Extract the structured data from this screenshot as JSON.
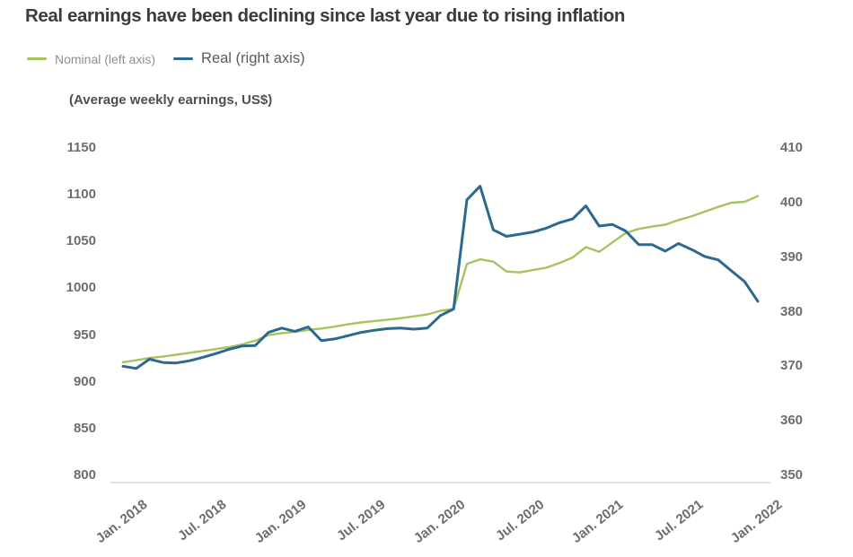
{
  "title": "Real earnings have been declining since last year due to rising inflation",
  "legend": {
    "items": [
      {
        "label": "Nominal (left axis)",
        "color": "#a5c45f"
      },
      {
        "label": "Real (right axis)",
        "color": "#2c688f"
      }
    ]
  },
  "chart_data": {
    "type": "line",
    "x_unit": "month",
    "x_start": "Jan 2018",
    "x_end": "Jan 2022",
    "x_tick_labels": [
      "Jan. 2018",
      "Jul. 2018",
      "Jan. 2019",
      "Jul. 2019",
      "Jan. 2020",
      "Jul. 2020",
      "Jan. 2021",
      "Jul. 2021",
      "Jan. 2022"
    ],
    "left_axis": {
      "label": "(Average weekly earnings, US$)",
      "ticks": [
        1150,
        1100,
        1050,
        1000,
        950,
        900,
        850,
        800
      ],
      "range": [
        800,
        1150
      ]
    },
    "right_axis": {
      "ticks": [
        410,
        400,
        390,
        380,
        370,
        360,
        350
      ],
      "range": [
        350,
        410
      ]
    },
    "series": [
      {
        "name": "Nominal (left axis)",
        "axis": "left",
        "color": "#a5c45f",
        "values": [
          921,
          923,
          925.5,
          927,
          929,
          931,
          933,
          935,
          937,
          940,
          944,
          950,
          952,
          953.5,
          955.5,
          957,
          959,
          961.5,
          963.5,
          965,
          966.5,
          968,
          970,
          972,
          976,
          978,
          1026,
          1031,
          1028.5,
          1018,
          1017,
          1019.5,
          1022,
          1027,
          1033,
          1044,
          1039,
          1049,
          1059,
          1063.5,
          1066,
          1068,
          1073,
          1077,
          1082,
          1087,
          1091.5,
          1092.5,
          1098.5
        ]
      },
      {
        "name": "Real (right axis)",
        "axis": "right",
        "color": "#2c688f",
        "values": [
          370,
          369.6,
          371.3,
          370.7,
          370.6,
          371,
          371.6,
          372.3,
          373.1,
          373.7,
          373.8,
          376.2,
          377,
          376.4,
          377.2,
          374.7,
          375,
          375.6,
          376.2,
          376.6,
          376.9,
          377,
          376.8,
          377,
          379.3,
          380.5,
          400.5,
          403,
          395,
          393.8,
          394.2,
          394.6,
          395.3,
          396.3,
          397,
          399.4,
          395.7,
          396,
          394.8,
          392.3,
          392.3,
          391.1,
          392.5,
          391.4,
          390.1,
          389.5,
          387.5,
          385.5,
          381.9
        ]
      }
    ]
  }
}
